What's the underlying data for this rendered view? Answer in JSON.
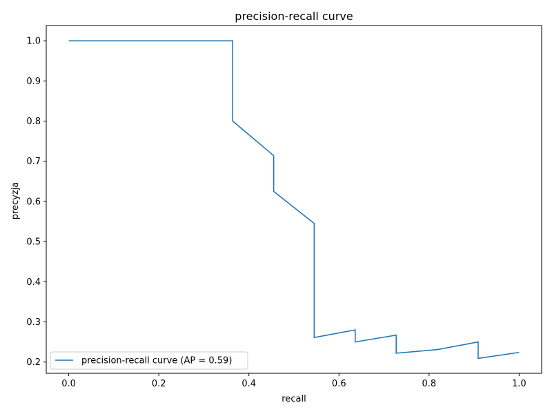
{
  "chart_data": {
    "type": "line",
    "title": "precision-recall curve",
    "xlabel": "recall",
    "ylabel": "precyzja",
    "xlim": [
      -0.05,
      1.05
    ],
    "ylim": [
      0.172,
      1.038
    ],
    "xticks": [
      0.0,
      0.2,
      0.4,
      0.6,
      0.8,
      1.0
    ],
    "xtick_labels": [
      "0.0",
      "0.2",
      "0.4",
      "0.6",
      "0.8",
      "1.0"
    ],
    "yticks": [
      0.2,
      0.3,
      0.4,
      0.5,
      0.6,
      0.7,
      0.8,
      0.9,
      1.0
    ],
    "ytick_labels": [
      "0.2",
      "0.3",
      "0.4",
      "0.5",
      "0.6",
      "0.7",
      "0.8",
      "0.9",
      "1.0"
    ],
    "grid": false,
    "legend_position": "lower-left",
    "series": [
      {
        "name": "precision-recall curve (AP = 0.59)",
        "color": "#1f77b4",
        "x": [
          0.0,
          0.364,
          0.364,
          0.455,
          0.455,
          0.545,
          0.545,
          0.636,
          0.636,
          0.727,
          0.727,
          0.818,
          0.909,
          0.909,
          1.0
        ],
        "y": [
          1.0,
          1.0,
          0.8,
          0.714,
          0.625,
          0.545,
          0.261,
          0.28,
          0.25,
          0.267,
          0.222,
          0.231,
          0.25,
          0.209,
          0.224
        ]
      }
    ]
  }
}
